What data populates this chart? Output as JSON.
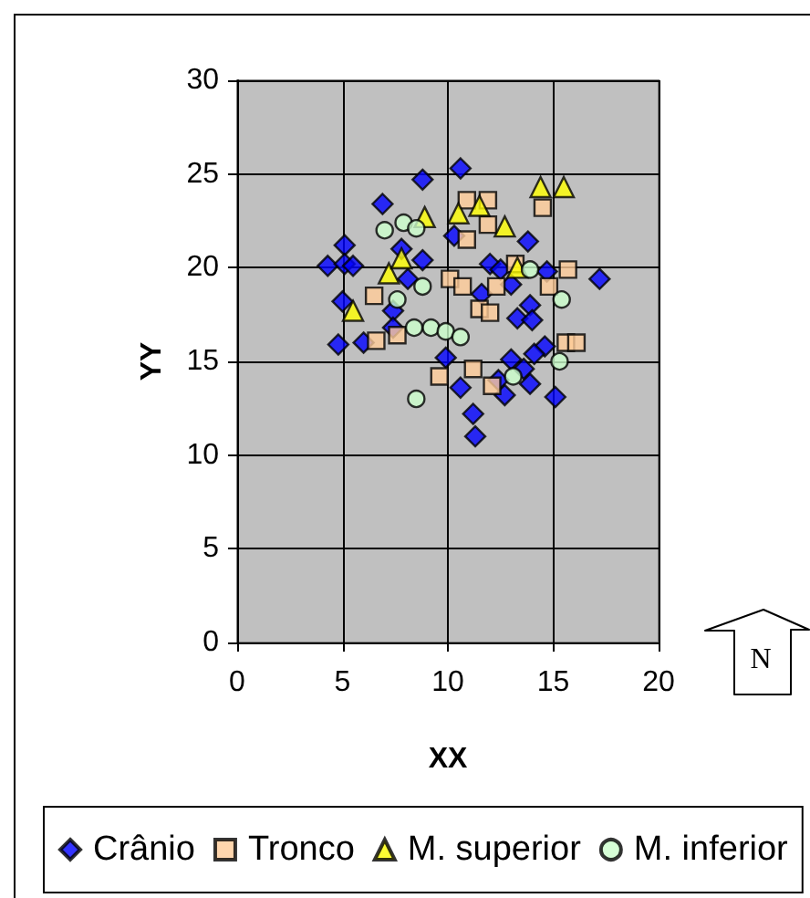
{
  "chart_data": {
    "type": "scatter",
    "xlabel": "XX",
    "ylabel": "YY",
    "xlim": [
      0,
      20
    ],
    "xticks": [
      0,
      5,
      10,
      15,
      20
    ],
    "ylim": [
      0,
      30
    ],
    "yticks": [
      0,
      5,
      10,
      15,
      20,
      25,
      30
    ],
    "grid": true,
    "legend": "bottom",
    "annotations": [
      "N"
    ],
    "series": [
      {
        "name": "Crânio",
        "color": "#0000ff",
        "marker": "diamond",
        "x": [
          4.3,
          5.1,
          5.1,
          5.5,
          5.0,
          4.8,
          6.0,
          6.9,
          7.8,
          8.8,
          8.1,
          7.4,
          7.4,
          8.8,
          10.6,
          10.3,
          9.9,
          12.0,
          12.5,
          13.8,
          14.7,
          17.2,
          13.0,
          11.6,
          13.9,
          13.3,
          14.0,
          14.6,
          14.1,
          13.0,
          13.6,
          10.6,
          12.7,
          13.9,
          15.1,
          12.4,
          11.2,
          11.3
        ],
        "values": [
          20.1,
          21.2,
          20.2,
          20.1,
          18.2,
          15.9,
          16.0,
          23.4,
          21.0,
          20.4,
          19.4,
          17.7,
          16.8,
          24.7,
          25.3,
          21.7,
          15.2,
          20.2,
          19.9,
          21.4,
          19.8,
          19.4,
          19.1,
          18.6,
          18.0,
          17.3,
          17.2,
          15.8,
          15.4,
          15.1,
          14.6,
          13.6,
          13.2,
          13.8,
          13.1,
          14.0,
          12.2,
          11.0
        ]
      },
      {
        "name": "Tronco",
        "color": "#ffcc99",
        "marker": "square",
        "x": [
          6.5,
          6.6,
          7.6,
          9.6,
          10.1,
          10.9,
          11.9,
          11.9,
          14.5,
          10.9,
          13.2,
          15.7,
          10.7,
          12.3,
          14.8,
          11.5,
          12.0,
          15.6,
          16.1,
          11.2,
          12.1
        ],
        "values": [
          18.5,
          16.1,
          16.4,
          14.2,
          19.4,
          23.6,
          23.6,
          22.3,
          23.2,
          21.5,
          20.2,
          19.9,
          19.0,
          19.0,
          19.0,
          17.8,
          17.6,
          16.0,
          16.0,
          14.6,
          13.7
        ]
      },
      {
        "name": "M. superior",
        "color": "#ffff00",
        "marker": "triangle",
        "x": [
          5.5,
          7.2,
          7.8,
          8.9,
          10.5,
          11.5,
          12.7,
          13.3,
          14.4,
          15.5
        ],
        "values": [
          17.7,
          19.7,
          20.5,
          22.7,
          22.9,
          23.3,
          22.2,
          20.0,
          24.3,
          24.3
        ]
      },
      {
        "name": "M. inferior",
        "color": "#ccffcc",
        "marker": "circle",
        "x": [
          7.0,
          7.9,
          8.5,
          7.6,
          8.8,
          8.4,
          9.2,
          9.9,
          10.6,
          8.5,
          13.9,
          15.4,
          15.3,
          13.1
        ],
        "values": [
          22.0,
          22.4,
          22.1,
          18.3,
          19.0,
          16.8,
          16.8,
          16.6,
          16.3,
          13.0,
          19.9,
          18.3,
          15.0,
          14.2
        ]
      }
    ]
  }
}
